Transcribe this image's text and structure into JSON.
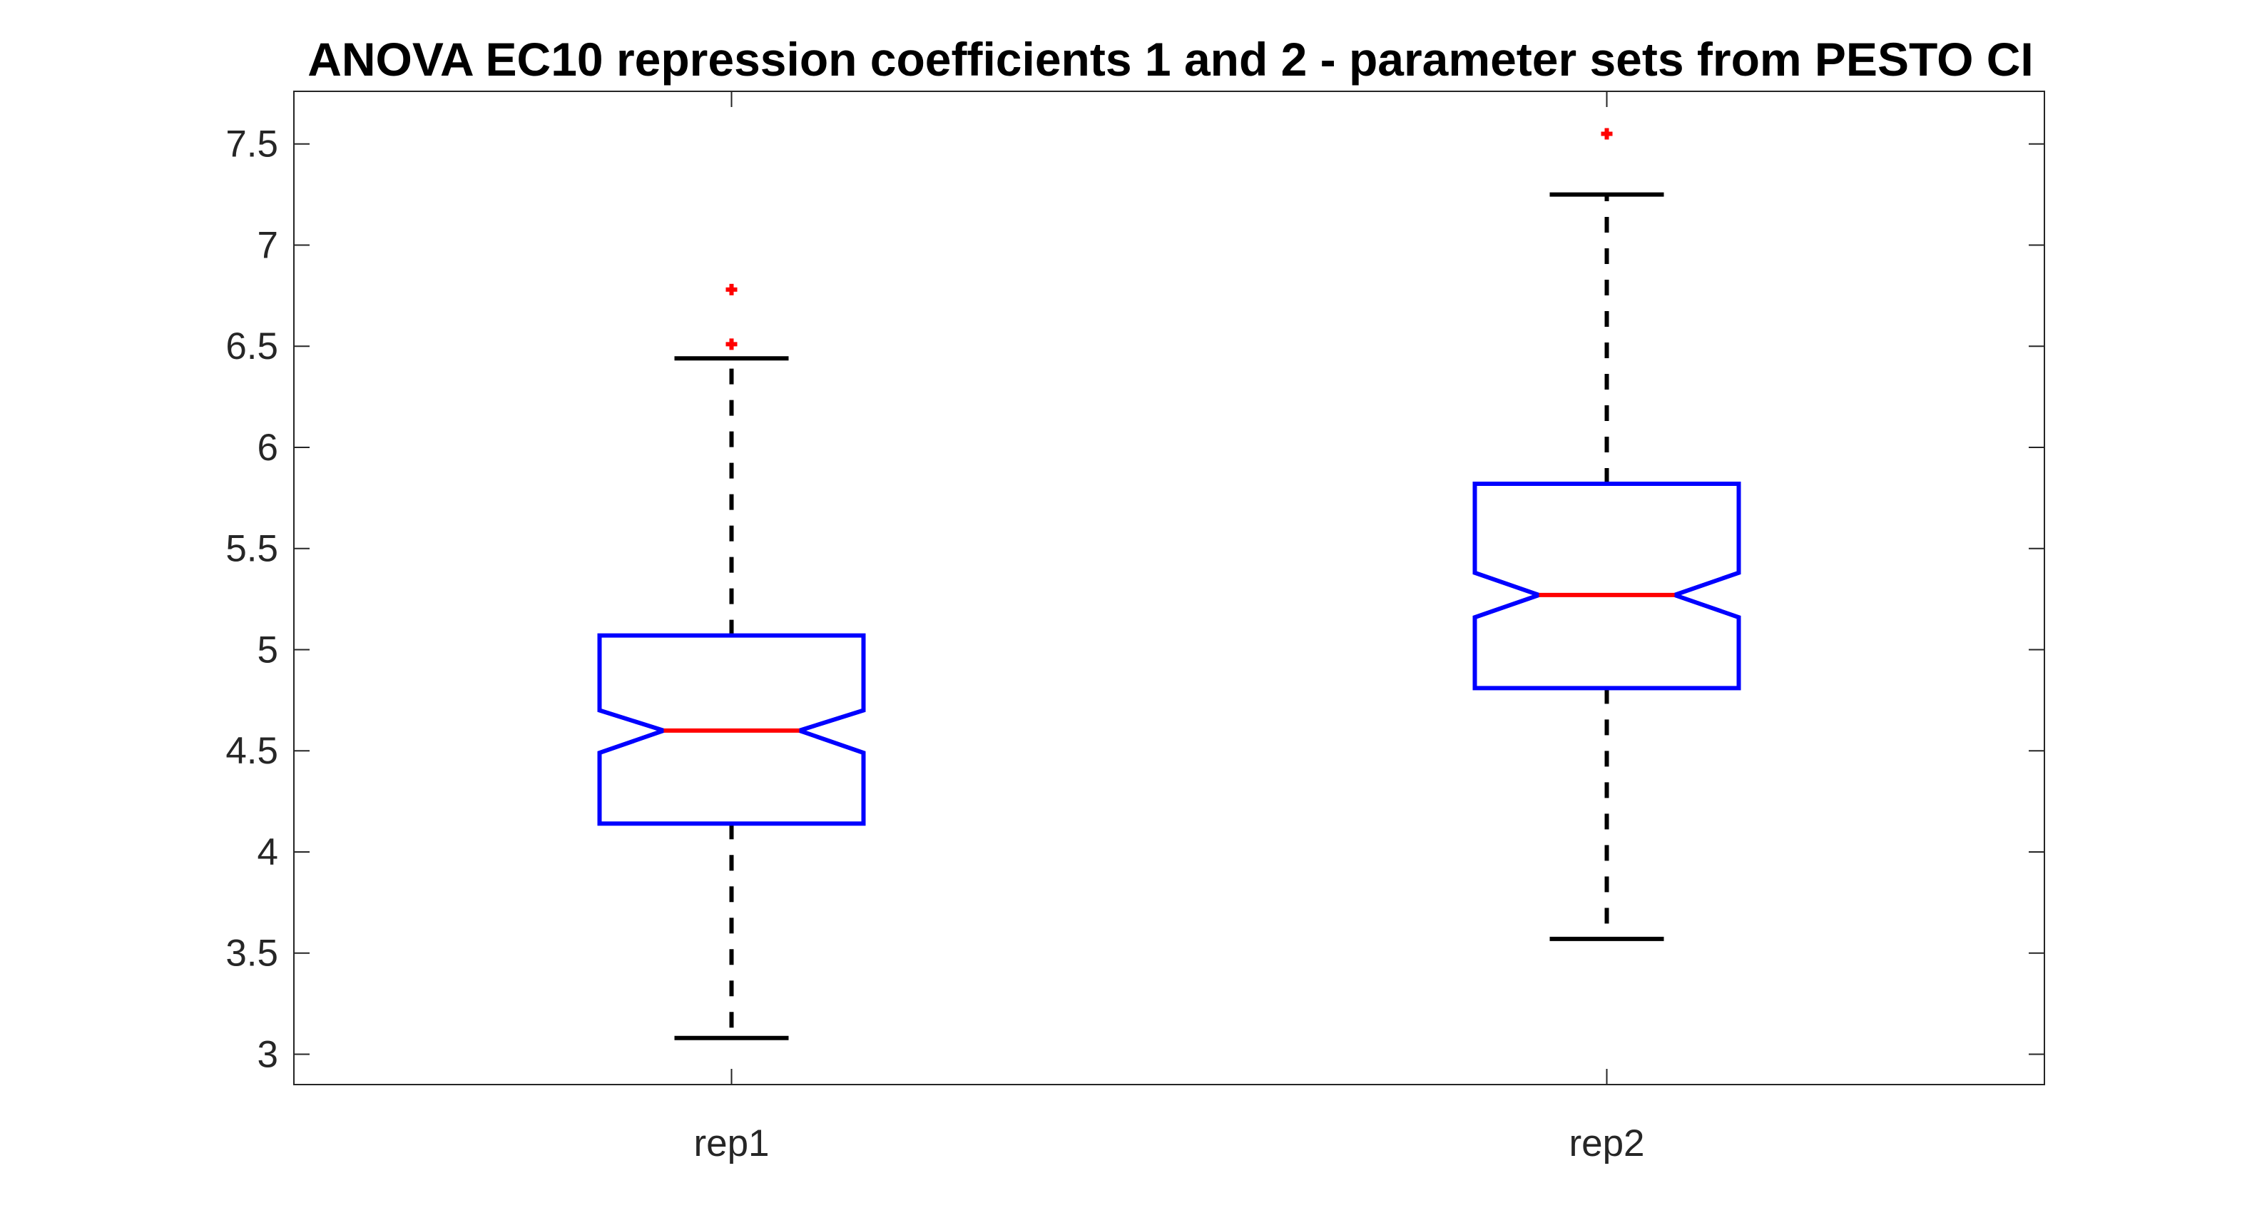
{
  "chart_data": {
    "type": "boxplot",
    "title": "ANOVA EC10 repression coefficients 1 and 2 - parameter sets from PESTO CI",
    "xlabel": "",
    "ylabel": "",
    "categories": [
      "rep1",
      "rep2"
    ],
    "ylim": [
      2.85,
      7.76
    ],
    "yticks": [
      3,
      3.5,
      4,
      4.5,
      5,
      5.5,
      6,
      6.5,
      7,
      7.5
    ],
    "ytick_labels": [
      "3",
      "3.5",
      "4",
      "4.5",
      "5",
      "5.5",
      "6",
      "6.5",
      "7",
      "7.5"
    ],
    "notched": true,
    "grid": false,
    "boxes": [
      {
        "name": "rep1",
        "whisker_low": 3.08,
        "q1": 4.14,
        "notch_low": 4.49,
        "median": 4.6,
        "notch_high": 4.7,
        "q3": 5.07,
        "whisker_high": 6.44,
        "outliers": [
          6.51,
          6.78
        ]
      },
      {
        "name": "rep2",
        "whisker_low": 3.57,
        "q1": 4.81,
        "notch_low": 5.16,
        "median": 5.27,
        "notch_high": 5.38,
        "q3": 5.82,
        "whisker_high": 7.25,
        "outliers": [
          7.55
        ]
      }
    ],
    "colors": {
      "box": "#0000ff",
      "median": "#ff0000",
      "whisker": "#000000",
      "outlier": "#ff0000",
      "axis": "#262626"
    }
  }
}
